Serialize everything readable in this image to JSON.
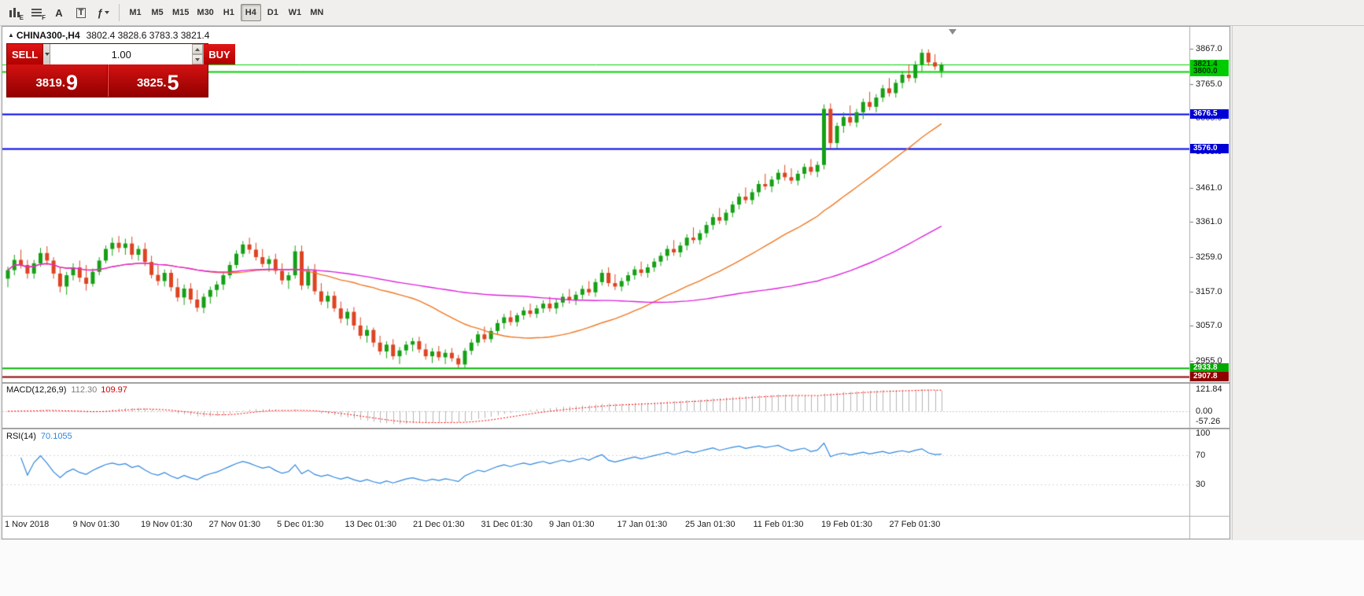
{
  "app": {
    "toolbar": {
      "icon_buttons": [
        {
          "name": "expert-chart-icon",
          "glyph": "E"
        },
        {
          "name": "profile-grid-icon",
          "glyph": "F"
        },
        {
          "name": "cursor-icon",
          "glyph": "A"
        },
        {
          "name": "text-label-icon",
          "glyph": "T"
        },
        {
          "name": "indicators-icon",
          "glyph": "ƒ"
        }
      ],
      "timeframes": [
        "M1",
        "M5",
        "M15",
        "M30",
        "H1",
        "H4",
        "D1",
        "W1",
        "MN"
      ],
      "active_timeframe": "H4"
    },
    "chart_header": {
      "symbol": "CHINA300-,H4",
      "ohlc": "3802.4 3828.6 3783.3 3821.4"
    },
    "order_panel": {
      "sell_label": "SELL",
      "buy_label": "BUY",
      "volume": "1.00",
      "bid": {
        "prefix": "3819.",
        "big": "9"
      },
      "ask": {
        "prefix": "3825.",
        "big": "5"
      }
    },
    "price_axis": {
      "ticks": [
        {
          "label": "3867.0",
          "value": 3867.0
        },
        {
          "label": "3765.0",
          "value": 3765.0
        },
        {
          "label": "3665.9",
          "value": 3665.9
        },
        {
          "label": "3565.9",
          "value": 3565.9
        },
        {
          "label": "3461.0",
          "value": 3461.0
        },
        {
          "label": "3361.0",
          "value": 3361.0
        },
        {
          "label": "3259.0",
          "value": 3259.0
        },
        {
          "label": "3157.0",
          "value": 3157.0
        },
        {
          "label": "3057.0",
          "value": 3057.0
        },
        {
          "label": "2955.0",
          "value": 2955.0
        }
      ],
      "badges": [
        {
          "label": "3821.4",
          "value": 3821.4,
          "bg": "#00ca00",
          "fg": "#003300"
        },
        {
          "label": "3800.0",
          "value": 3800.0,
          "bg": "#00ca00",
          "fg": "#003300"
        },
        {
          "label": "3676.5",
          "value": 3676.5,
          "bg": "#0000d6",
          "fg": "#ffffff"
        },
        {
          "label": "3576.0",
          "value": 3576.0,
          "bg": "#0000d6",
          "fg": "#ffffff"
        },
        {
          "label": "2933.8",
          "value": 2933.8,
          "bg": "#00a800",
          "fg": "#ffffff"
        },
        {
          "label": "2907.8",
          "value": 2907.8,
          "bg": "#8f0000",
          "fg": "#ffffff"
        }
      ]
    },
    "panels": {
      "macd": {
        "title": "MACD(12,26,9)",
        "main": "112.30",
        "signal": "109.97",
        "scale": [
          "121.84",
          "0.00",
          "-57.26"
        ]
      },
      "rsi": {
        "title": "RSI(14)",
        "value": "70.1055",
        "scale": [
          "100",
          "70",
          "30"
        ]
      }
    }
  },
  "chart_data": {
    "type": "candlestick",
    "symbol": "CHINA300-",
    "timeframe": "H4",
    "last_ohlc": {
      "open": 3802.4,
      "high": 3828.6,
      "low": 3783.3,
      "close": 3821.4
    },
    "style": {
      "bull": "#15a015",
      "bear": "#dd4422",
      "ma_fast": "#ee7722",
      "ma_slow": "#dd22dd",
      "macd_hist": "#b4b4b4",
      "macd_signal": "#ff0000",
      "rsi_line": "#2e86de",
      "level_line": "#d6d6d6"
    },
    "overlays": {
      "ma_fast_period": 30,
      "ma_slow_period": 80
    },
    "hlines": [
      {
        "value": 3821.4,
        "color": "#00d400",
        "width": 1
      },
      {
        "value": 3800.0,
        "color": "#00d400",
        "width": 2
      },
      {
        "value": 3676.5,
        "color": "#0000e8",
        "width": 2
      },
      {
        "value": 3576.0,
        "color": "#0000e8",
        "width": 2
      },
      {
        "value": 2933.8,
        "color": "#00b000",
        "width": 2
      },
      {
        "value": 2907.8,
        "color": "#8b0000",
        "width": 2
      }
    ],
    "indicators": [
      {
        "name": "MACD",
        "params": "12,26,9",
        "main_value": 112.3,
        "signal_value": 109.97,
        "scale": [
          121.84,
          0.0,
          -57.26
        ]
      },
      {
        "name": "RSI",
        "params": "14",
        "value": 70.1055,
        "levels": [
          70,
          30
        ],
        "range": [
          0,
          100
        ]
      }
    ],
    "time_labels": [
      "1 Nov 2018",
      "9 Nov 01:30",
      "19 Nov 01:30",
      "27 Nov 01:30",
      "5 Dec 01:30",
      "13 Dec 01:30",
      "21 Dec 01:30",
      "31 Dec 01:30",
      "9 Jan 01:30",
      "17 Jan 01:30",
      "25 Jan 01:30",
      "11 Feb 01:30",
      "19 Feb 01:30",
      "27 Feb 01:30"
    ],
    "candles": [
      [
        3195,
        3230,
        3170,
        3220
      ],
      [
        3220,
        3265,
        3205,
        3250
      ],
      [
        3250,
        3280,
        3225,
        3235
      ],
      [
        3235,
        3250,
        3195,
        3210
      ],
      [
        3210,
        3250,
        3195,
        3240
      ],
      [
        3240,
        3285,
        3230,
        3270
      ],
      [
        3270,
        3290,
        3235,
        3248
      ],
      [
        3248,
        3258,
        3195,
        3210
      ],
      [
        3210,
        3228,
        3155,
        3172
      ],
      [
        3172,
        3215,
        3148,
        3205
      ],
      [
        3205,
        3240,
        3190,
        3228
      ],
      [
        3228,
        3248,
        3185,
        3198
      ],
      [
        3198,
        3235,
        3160,
        3180
      ],
      [
        3180,
        3225,
        3172,
        3215
      ],
      [
        3215,
        3258,
        3205,
        3248
      ],
      [
        3248,
        3292,
        3240,
        3282
      ],
      [
        3282,
        3315,
        3262,
        3300
      ],
      [
        3300,
        3320,
        3272,
        3285
      ],
      [
        3285,
        3312,
        3265,
        3298
      ],
      [
        3298,
        3318,
        3252,
        3265
      ],
      [
        3265,
        3292,
        3248,
        3282
      ],
      [
        3282,
        3300,
        3232,
        3244
      ],
      [
        3244,
        3262,
        3196,
        3206
      ],
      [
        3206,
        3235,
        3175,
        3188
      ],
      [
        3188,
        3222,
        3172,
        3212
      ],
      [
        3212,
        3222,
        3158,
        3170
      ],
      [
        3170,
        3196,
        3128,
        3140
      ],
      [
        3140,
        3178,
        3118,
        3166
      ],
      [
        3166,
        3182,
        3122,
        3134
      ],
      [
        3134,
        3162,
        3098,
        3110
      ],
      [
        3110,
        3152,
        3094,
        3142
      ],
      [
        3142,
        3172,
        3122,
        3162
      ],
      [
        3162,
        3188,
        3142,
        3178
      ],
      [
        3178,
        3215,
        3162,
        3205
      ],
      [
        3205,
        3245,
        3195,
        3235
      ],
      [
        3235,
        3278,
        3225,
        3268
      ],
      [
        3268,
        3305,
        3258,
        3295
      ],
      [
        3295,
        3315,
        3268,
        3280
      ],
      [
        3280,
        3300,
        3248,
        3258
      ],
      [
        3258,
        3282,
        3228,
        3238
      ],
      [
        3238,
        3262,
        3215,
        3252
      ],
      [
        3252,
        3268,
        3208,
        3218
      ],
      [
        3218,
        3240,
        3178,
        3190
      ],
      [
        3190,
        3215,
        3165,
        3205
      ],
      [
        3205,
        3292,
        3195,
        3275
      ],
      [
        3275,
        3292,
        3162,
        3175
      ],
      [
        3175,
        3232,
        3165,
        3218
      ],
      [
        3218,
        3238,
        3148,
        3158
      ],
      [
        3158,
        3182,
        3118,
        3128
      ],
      [
        3128,
        3158,
        3108,
        3145
      ],
      [
        3145,
        3158,
        3098,
        3108
      ],
      [
        3108,
        3128,
        3065,
        3078
      ],
      [
        3078,
        3108,
        3058,
        3098
      ],
      [
        3098,
        3112,
        3045,
        3058
      ],
      [
        3058,
        3082,
        3018,
        3028
      ],
      [
        3028,
        3058,
        3008,
        3045
      ],
      [
        3045,
        3052,
        2995,
        3008
      ],
      [
        3008,
        3028,
        2972,
        2982
      ],
      [
        2982,
        3012,
        2962,
        3002
      ],
      [
        3002,
        3018,
        2958,
        2968
      ],
      [
        2968,
        2995,
        2945,
        2985
      ],
      [
        2985,
        3012,
        2972,
        3002
      ],
      [
        3002,
        3022,
        2982,
        3012
      ],
      [
        3012,
        3025,
        2978,
        2988
      ],
      [
        2988,
        3005,
        2958,
        2968
      ],
      [
        2968,
        2992,
        2948,
        2982
      ],
      [
        2982,
        2998,
        2955,
        2965
      ],
      [
        2965,
        2988,
        2945,
        2978
      ],
      [
        2978,
        2992,
        2952,
        2962
      ],
      [
        2962,
        2972,
        2934,
        2944
      ],
      [
        2944,
        2992,
        2934,
        2984
      ],
      [
        2984,
        3018,
        2972,
        3008
      ],
      [
        3008,
        3042,
        2998,
        3032
      ],
      [
        3032,
        3055,
        3008,
        3018
      ],
      [
        3018,
        3052,
        3008,
        3042
      ],
      [
        3042,
        3075,
        3032,
        3065
      ],
      [
        3065,
        3092,
        3048,
        3082
      ],
      [
        3082,
        3102,
        3058,
        3068
      ],
      [
        3068,
        3095,
        3055,
        3088
      ],
      [
        3088,
        3112,
        3075,
        3102
      ],
      [
        3102,
        3122,
        3082,
        3092
      ],
      [
        3092,
        3118,
        3080,
        3108
      ],
      [
        3108,
        3132,
        3095,
        3122
      ],
      [
        3122,
        3142,
        3098,
        3108
      ],
      [
        3108,
        3135,
        3092,
        3125
      ],
      [
        3125,
        3152,
        3112,
        3142
      ],
      [
        3142,
        3165,
        3122,
        3132
      ],
      [
        3132,
        3158,
        3118,
        3148
      ],
      [
        3148,
        3175,
        3135,
        3165
      ],
      [
        3165,
        3188,
        3145,
        3155
      ],
      [
        3155,
        3195,
        3142,
        3185
      ],
      [
        3185,
        3222,
        3175,
        3212
      ],
      [
        3212,
        3228,
        3172,
        3182
      ],
      [
        3182,
        3208,
        3162,
        3172
      ],
      [
        3172,
        3198,
        3158,
        3188
      ],
      [
        3188,
        3215,
        3175,
        3205
      ],
      [
        3205,
        3232,
        3192,
        3222
      ],
      [
        3222,
        3245,
        3202,
        3212
      ],
      [
        3212,
        3238,
        3198,
        3228
      ],
      [
        3228,
        3255,
        3215,
        3245
      ],
      [
        3245,
        3272,
        3232,
        3262
      ],
      [
        3262,
        3292,
        3248,
        3282
      ],
      [
        3282,
        3308,
        3262,
        3272
      ],
      [
        3272,
        3302,
        3258,
        3292
      ],
      [
        3292,
        3325,
        3278,
        3315
      ],
      [
        3315,
        3345,
        3298,
        3308
      ],
      [
        3308,
        3338,
        3295,
        3328
      ],
      [
        3328,
        3362,
        3315,
        3352
      ],
      [
        3352,
        3385,
        3338,
        3375
      ],
      [
        3375,
        3402,
        3355,
        3365
      ],
      [
        3365,
        3398,
        3352,
        3388
      ],
      [
        3388,
        3422,
        3375,
        3412
      ],
      [
        3412,
        3445,
        3398,
        3435
      ],
      [
        3435,
        3462,
        3415,
        3425
      ],
      [
        3425,
        3458,
        3412,
        3448
      ],
      [
        3448,
        3482,
        3435,
        3472
      ],
      [
        3472,
        3502,
        3455,
        3465
      ],
      [
        3465,
        3495,
        3448,
        3485
      ],
      [
        3485,
        3515,
        3472,
        3505
      ],
      [
        3505,
        3528,
        3482,
        3492
      ],
      [
        3492,
        3518,
        3472,
        3482
      ],
      [
        3482,
        3512,
        3468,
        3502
      ],
      [
        3502,
        3532,
        3488,
        3522
      ],
      [
        3522,
        3545,
        3498,
        3508
      ],
      [
        3508,
        3538,
        3492,
        3528
      ],
      [
        3528,
        3705,
        3515,
        3692
      ],
      [
        3692,
        3708,
        3576,
        3592
      ],
      [
        3592,
        3652,
        3576,
        3642
      ],
      [
        3642,
        3682,
        3622,
        3668
      ],
      [
        3668,
        3702,
        3642,
        3652
      ],
      [
        3652,
        3692,
        3638,
        3682
      ],
      [
        3682,
        3722,
        3662,
        3712
      ],
      [
        3712,
        3742,
        3688,
        3698
      ],
      [
        3698,
        3735,
        3682,
        3725
      ],
      [
        3725,
        3762,
        3712,
        3752
      ],
      [
        3752,
        3782,
        3728,
        3738
      ],
      [
        3738,
        3778,
        3725,
        3768
      ],
      [
        3768,
        3802,
        3752,
        3792
      ],
      [
        3792,
        3822,
        3772,
        3782
      ],
      [
        3782,
        3832,
        3768,
        3822
      ],
      [
        3822,
        3867,
        3802,
        3856
      ],
      [
        3856,
        3866,
        3818,
        3828
      ],
      [
        3828,
        3852,
        3806,
        3816
      ],
      [
        3802.4,
        3828.6,
        3783.3,
        3821.4
      ]
    ]
  }
}
